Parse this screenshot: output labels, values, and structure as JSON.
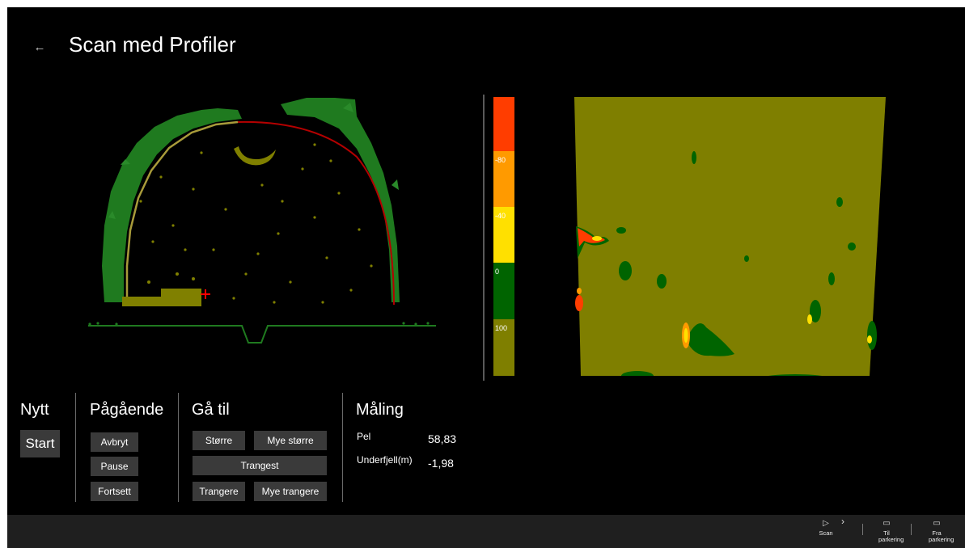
{
  "header": {
    "back_icon": "back-arrow-icon",
    "back_glyph": "←",
    "title": "Scan med Profiler"
  },
  "scale": {
    "colors": [
      "#ff3d00",
      "#ff9a00",
      "#ffe000",
      "#006400",
      "#7f7f00"
    ],
    "labels": [
      "-80",
      "-40",
      "0",
      "100"
    ]
  },
  "sections": {
    "nytt": {
      "title": "Nytt",
      "start_label": "Start"
    },
    "pagaende": {
      "title": "Pågående",
      "abort_label": "Avbryt",
      "pause_label": "Pause",
      "resume_label": "Fortsett"
    },
    "gaa_til": {
      "title": "Gå til",
      "larger_label": "Større",
      "much_larger_label": "Mye større",
      "tightest_label": "Trangest",
      "tighter_label": "Trangere",
      "much_tighter_label": "Mye trangere"
    },
    "maling": {
      "title": "Måling",
      "pel_label": "Pel",
      "pel_value": "58,83",
      "underfjell_label": "Underfjell(m)",
      "underfjell_value": "-1,98"
    }
  },
  "bottom_bar": {
    "commands": [
      {
        "icon": "play-icon",
        "glyph": "▷",
        "label": "Scan"
      },
      {
        "icon": "chevron-right-icon",
        "glyph": "›",
        "label": ""
      },
      {
        "icon": "rectangle-icon",
        "glyph": "▭",
        "label": "Til parkering"
      },
      {
        "icon": "rectangle-icon",
        "glyph": "▭",
        "label": "Fra parkering"
      }
    ]
  },
  "colors": {
    "background": "#000000",
    "button": "#3a3a3a",
    "rock_green": "#1f7a1f",
    "fill_olive": "#7f7f00",
    "theoretical_profile_red": "#b40000"
  }
}
